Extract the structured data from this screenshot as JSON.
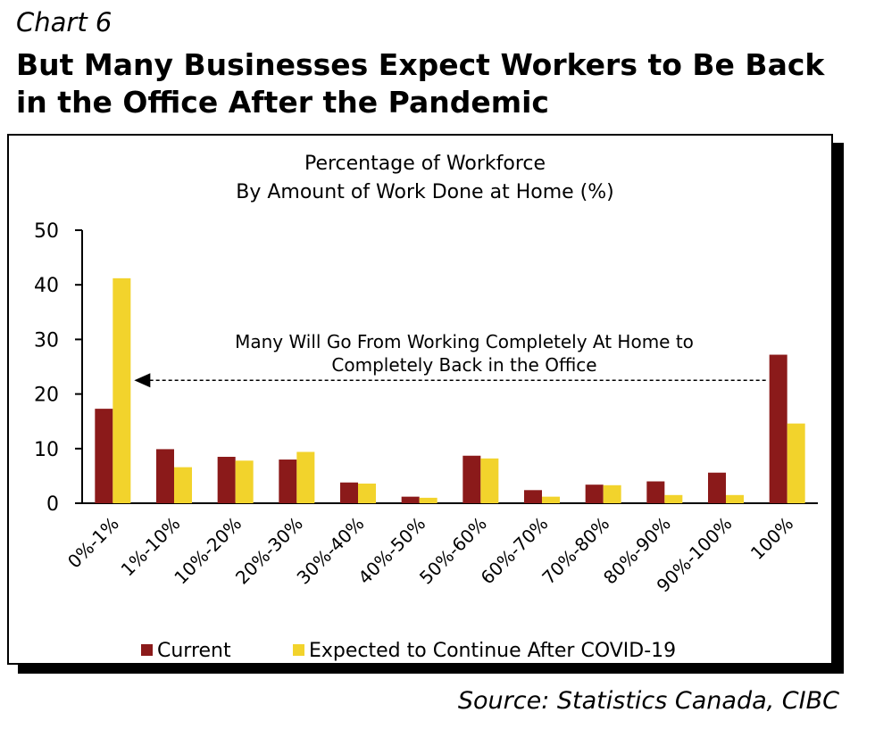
{
  "header": {
    "chart_number": "Chart 6",
    "headline": "But Many Businesses Expect Workers to Be Back in the Office After the Pandemic"
  },
  "footer": {
    "source": "Source: Statistics Canada, CIBC"
  },
  "colors": {
    "current": "#8B1A1A",
    "expected": "#F2D32C",
    "frame": "#000000"
  },
  "chart_data": {
    "type": "bar",
    "title_lines": [
      "Percentage of Workforce",
      "By Amount of Work Done at Home (%)"
    ],
    "categories": [
      "0%-1%",
      "1%-10%",
      "10%-20%",
      "20%-30%",
      "30%-40%",
      "40%-50%",
      "50%-60%",
      "60%-70%",
      "70%-80%",
      "80%-90%",
      "90%-100%",
      "100%"
    ],
    "series": [
      {
        "name": "Current",
        "values": [
          17.3,
          9.9,
          8.5,
          8.0,
          3.8,
          1.2,
          8.7,
          2.4,
          3.4,
          4.0,
          5.6,
          27.2
        ]
      },
      {
        "name": "Expected to Continue After COVID-19",
        "values": [
          41.2,
          6.6,
          7.8,
          9.4,
          3.6,
          1.0,
          8.2,
          1.2,
          3.3,
          1.5,
          1.5,
          14.6
        ]
      }
    ],
    "ylim": [
      0,
      50
    ],
    "yticks": [
      0,
      10,
      20,
      30,
      40,
      50
    ],
    "annotation": {
      "lines": [
        "Many Will Go From Working Completely At Home to",
        "Completely Back in the Office"
      ],
      "arrow_from_category": "100%",
      "arrow_to_category": "0%-1%",
      "arrow_value": 22.5
    },
    "legend_position": "bottom",
    "grid": false
  }
}
